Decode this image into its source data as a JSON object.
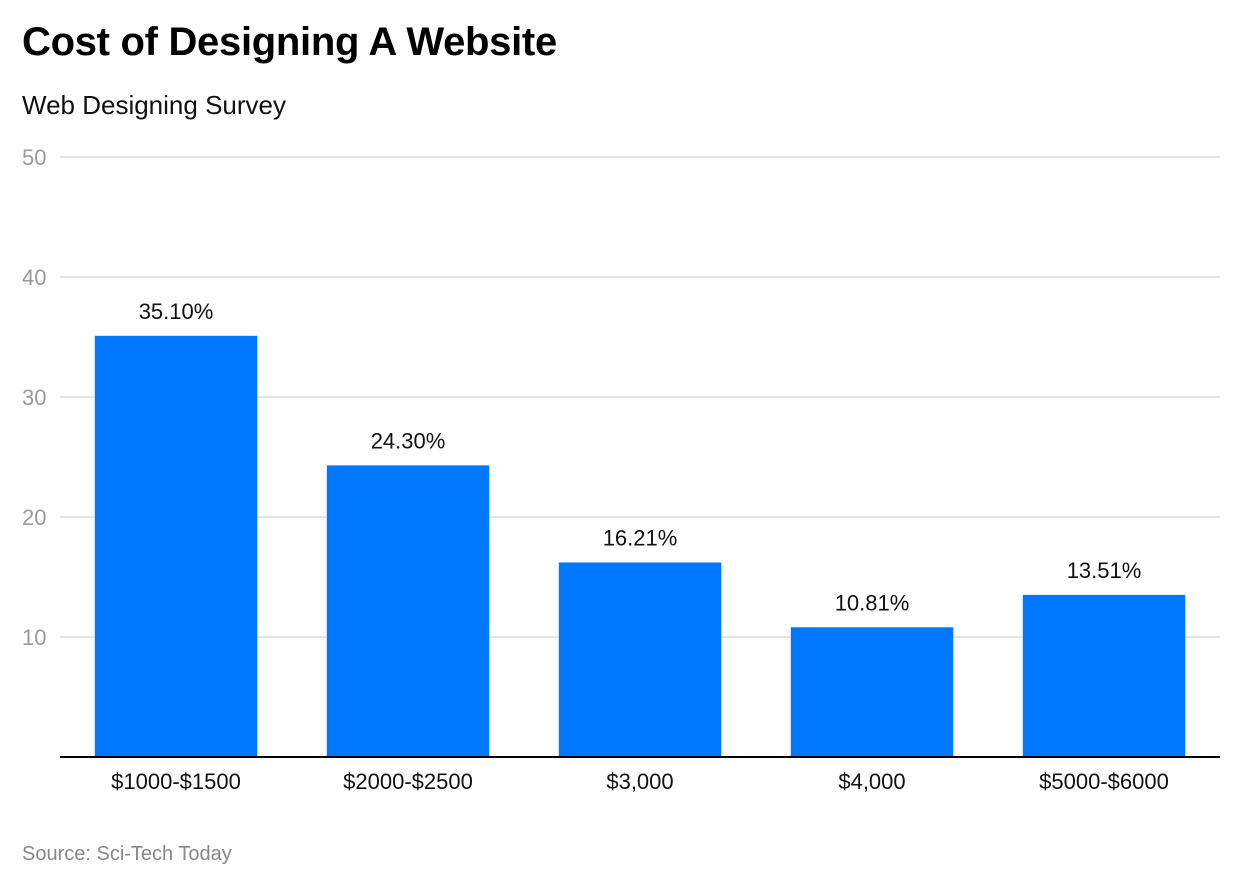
{
  "chart_data": {
    "type": "bar",
    "title": "Cost of Designing A Website",
    "subtitle": "Web Designing Survey",
    "source": "Source: Sci-Tech Today",
    "categories": [
      "$1000-$1500",
      "$2000-$2500",
      "$3,000",
      "$4,000",
      "$5000-$6000"
    ],
    "values": [
      35.1,
      24.3,
      16.21,
      10.81,
      13.51
    ],
    "data_labels": [
      "35.10%",
      "24.30%",
      "16.21%",
      "10.81%",
      "13.51%"
    ],
    "ylim": [
      0,
      50
    ],
    "yticks": [
      10,
      20,
      30,
      40,
      50
    ],
    "grid": true,
    "bar_color": "#0077ff",
    "grid_color": "#e3e3e3",
    "axis_color": "#000000"
  }
}
